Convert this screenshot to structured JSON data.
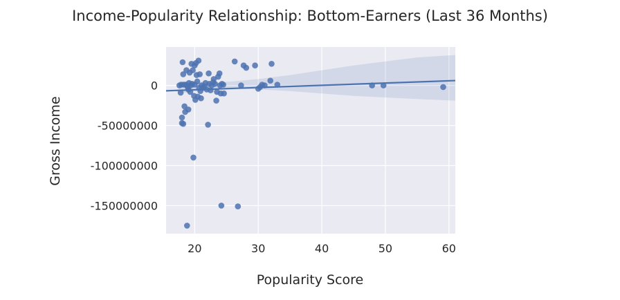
{
  "chart_data": {
    "type": "scatter",
    "title": "Income-Popularity Relationship: Bottom-Earners (Last 36 Months)",
    "xlabel": "Popularity Score",
    "ylabel": "Gross Income",
    "xlim": [
      15.5,
      61
    ],
    "ylim": [
      -185000000,
      48000000
    ],
    "xticks": [
      20,
      30,
      40,
      50,
      60
    ],
    "yticks": [
      0,
      -50000000,
      -100000000,
      -150000000
    ],
    "ytick_labels": [
      "0",
      "-50000000",
      "-100000000",
      "-150000000"
    ],
    "background": "#eaeaf2",
    "grid": true,
    "point_color": "#4c72b0",
    "regression": {
      "intercept": -11000000,
      "slope": 280000
    },
    "ci_band": [
      {
        "x": 17.5,
        "lower": -10000000,
        "upper": 5000000
      },
      {
        "x": 20,
        "lower": -8000000,
        "upper": 5000000
      },
      {
        "x": 23,
        "lower": -4500000,
        "upper": 3500000
      },
      {
        "x": 26,
        "lower": -4000000,
        "upper": 5000000
      },
      {
        "x": 30,
        "lower": -5000000,
        "upper": 8000000
      },
      {
        "x": 35,
        "lower": -7000000,
        "upper": 13000000
      },
      {
        "x": 40,
        "lower": -10000000,
        "upper": 19000000
      },
      {
        "x": 45,
        "lower": -13000000,
        "upper": 25000000
      },
      {
        "x": 50,
        "lower": -15000000,
        "upper": 30000000
      },
      {
        "x": 55,
        "lower": -17000000,
        "upper": 35000000
      },
      {
        "x": 61,
        "lower": -19000000,
        "upper": 38000000
      }
    ],
    "points": [
      {
        "x": 17.6,
        "y": 0
      },
      {
        "x": 17.8,
        "y": -9000000
      },
      {
        "x": 17.9,
        "y": 1000000
      },
      {
        "x": 18.0,
        "y": -40000000
      },
      {
        "x": 18.0,
        "y": -47000000
      },
      {
        "x": 18.1,
        "y": 29000000
      },
      {
        "x": 18.2,
        "y": -48000000
      },
      {
        "x": 18.2,
        "y": 14000000
      },
      {
        "x": 18.3,
        "y": 1000000
      },
      {
        "x": 18.4,
        "y": -26000000
      },
      {
        "x": 18.5,
        "y": -33000000
      },
      {
        "x": 18.6,
        "y": 1000000
      },
      {
        "x": 18.7,
        "y": 19000000
      },
      {
        "x": 18.8,
        "y": -175000000
      },
      {
        "x": 18.9,
        "y": -2000000
      },
      {
        "x": 19.0,
        "y": -30000000
      },
      {
        "x": 19.0,
        "y": -5000000
      },
      {
        "x": 19.1,
        "y": 3000000
      },
      {
        "x": 19.2,
        "y": 16000000
      },
      {
        "x": 19.3,
        "y": -8000000
      },
      {
        "x": 19.4,
        "y": 0
      },
      {
        "x": 19.5,
        "y": 27000000
      },
      {
        "x": 19.6,
        "y": 2000000
      },
      {
        "x": 19.7,
        "y": 19000000
      },
      {
        "x": 19.8,
        "y": -90000000
      },
      {
        "x": 19.9,
        "y": -13000000
      },
      {
        "x": 20.0,
        "y": 25000000
      },
      {
        "x": 20.0,
        "y": 1000000
      },
      {
        "x": 20.1,
        "y": -18000000
      },
      {
        "x": 20.2,
        "y": 28000000
      },
      {
        "x": 20.3,
        "y": 13000000
      },
      {
        "x": 20.4,
        "y": 5000000
      },
      {
        "x": 20.5,
        "y": -14000000
      },
      {
        "x": 20.6,
        "y": 31000000
      },
      {
        "x": 20.7,
        "y": -3000000
      },
      {
        "x": 20.8,
        "y": 14000000
      },
      {
        "x": 20.9,
        "y": -7000000
      },
      {
        "x": 21.0,
        "y": -16000000
      },
      {
        "x": 21.1,
        "y": 0
      },
      {
        "x": 21.3,
        "y": -3000000
      },
      {
        "x": 21.5,
        "y": -1000000
      },
      {
        "x": 21.7,
        "y": 3000000
      },
      {
        "x": 21.9,
        "y": -5000000
      },
      {
        "x": 22.1,
        "y": -49000000
      },
      {
        "x": 22.2,
        "y": 15000000
      },
      {
        "x": 22.3,
        "y": 2000000
      },
      {
        "x": 22.5,
        "y": -6000000
      },
      {
        "x": 22.7,
        "y": 0
      },
      {
        "x": 22.9,
        "y": 4000000
      },
      {
        "x": 23.0,
        "y": 8000000
      },
      {
        "x": 23.2,
        "y": 2000000
      },
      {
        "x": 23.4,
        "y": -19000000
      },
      {
        "x": 23.5,
        "y": -8000000
      },
      {
        "x": 23.7,
        "y": 11000000
      },
      {
        "x": 23.9,
        "y": 15000000
      },
      {
        "x": 24.0,
        "y": 0
      },
      {
        "x": 24.1,
        "y": -10000000
      },
      {
        "x": 24.2,
        "y": -150000000
      },
      {
        "x": 24.3,
        "y": 2000000
      },
      {
        "x": 24.5,
        "y": 1000000
      },
      {
        "x": 24.6,
        "y": -10000000
      },
      {
        "x": 26.3,
        "y": 30000000
      },
      {
        "x": 26.8,
        "y": -151000000
      },
      {
        "x": 27.3,
        "y": 0
      },
      {
        "x": 27.7,
        "y": 25000000
      },
      {
        "x": 28.1,
        "y": 22000000
      },
      {
        "x": 29.5,
        "y": 25000000
      },
      {
        "x": 30.0,
        "y": -4000000
      },
      {
        "x": 30.3,
        "y": -2000000
      },
      {
        "x": 30.6,
        "y": 1000000
      },
      {
        "x": 31.0,
        "y": 0
      },
      {
        "x": 31.9,
        "y": 6000000
      },
      {
        "x": 32.1,
        "y": 27000000
      },
      {
        "x": 33.0,
        "y": 1000000
      },
      {
        "x": 47.9,
        "y": 0
      },
      {
        "x": 49.7,
        "y": 0
      },
      {
        "x": 59.1,
        "y": -2000000
      }
    ]
  }
}
